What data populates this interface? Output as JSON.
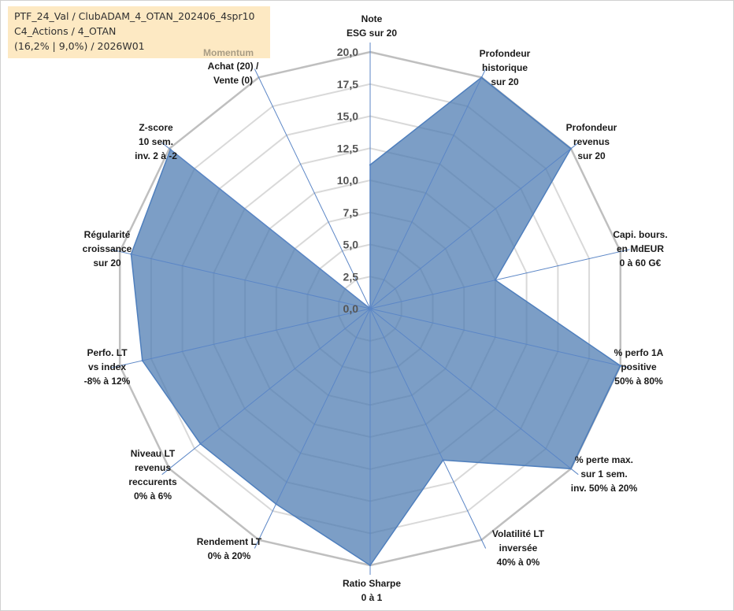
{
  "header": {
    "line1": "PTF_24_Val / ClubADAM_4_OTAN_202406_4spr10",
    "line2": "C4_Actions / 4_OTAN",
    "line3": "(16,2% | 9,0%) / 2026W01",
    "momentum_label": "Momentum"
  },
  "chart_data": {
    "type": "radar",
    "title": "",
    "range": [
      0,
      20
    ],
    "tick_step": 2.5,
    "ticks": [
      "0,0",
      "2,5",
      "5,0",
      "7,5",
      "10,0",
      "12,5",
      "15,0",
      "17,5",
      "20,0"
    ],
    "grid": true,
    "axes": [
      {
        "label": [
          "Note",
          "ESG sur 20"
        ],
        "value": 11.2
      },
      {
        "label": [
          "Profondeur",
          "historique",
          "sur 20"
        ],
        "value": 20.0
      },
      {
        "label": [
          "Profondeur",
          "revenus",
          "sur 20"
        ],
        "value": 20.0
      },
      {
        "label": [
          "Capi. bours.",
          "en MdEUR",
          "0 à 60 G€"
        ],
        "value": 10.0
      },
      {
        "label": [
          "% perfo 1A",
          "positive",
          "50% à 80%"
        ],
        "value": 20.0
      },
      {
        "label": [
          "% perte max.",
          "sur 1 sem.",
          "inv. 50% à 20%"
        ],
        "value": 20.0
      },
      {
        "label": [
          "Volatilité LT",
          "inversée",
          "40% à 0%"
        ],
        "value": 13.1
      },
      {
        "label": [
          "Ratio Sharpe",
          "0 à 1"
        ],
        "value": 20.0
      },
      {
        "label": [
          "Rendement LT",
          "0% à 20%"
        ],
        "value": 16.9
      },
      {
        "label": [
          "Niveau LT",
          "revenus",
          "reccurents",
          "0% à 6%"
        ],
        "value": 16.9
      },
      {
        "label": [
          "Perfo. LT",
          "vs index",
          "-8% à 12%"
        ],
        "value": 18.2
      },
      {
        "label": [
          "Régularité",
          "croissance",
          "sur 20"
        ],
        "value": 19.1
      },
      {
        "label": [
          "Z-score",
          "10 sem.",
          "inv. 2 à -2"
        ],
        "value": 19.9
      },
      {
        "label": [
          "Achat (20) /",
          "Vente (0)"
        ],
        "value": 0.0
      }
    ],
    "series": [
      {
        "name": "Portefeuille",
        "color": "#5b84b6"
      }
    ],
    "colors": {
      "fill": "#4a78b0",
      "outline": "#4f7fbd",
      "spoke": "#5b86c6",
      "grid": "#d9d9d9",
      "outer_ring": "#bfbfbf"
    }
  }
}
